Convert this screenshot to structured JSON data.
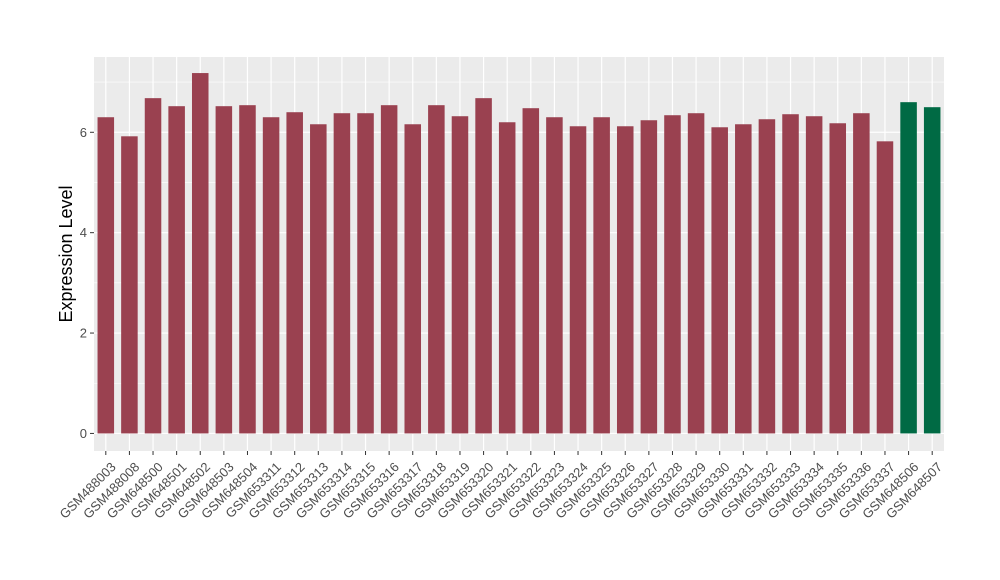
{
  "chart_data": {
    "type": "bar",
    "title": "",
    "xlabel": "",
    "ylabel": "Expression Level",
    "ylim": [
      -0.35,
      7.5
    ],
    "yticks": [
      0,
      2,
      4,
      6
    ],
    "grid": true,
    "legend": "none",
    "categories": [
      "GSM488003",
      "GSM488008",
      "GSM648500",
      "GSM648501",
      "GSM648502",
      "GSM648503",
      "GSM648504",
      "GSM653311",
      "GSM653312",
      "GSM653313",
      "GSM653314",
      "GSM653315",
      "GSM653316",
      "GSM653317",
      "GSM653318",
      "GSM653319",
      "GSM653320",
      "GSM653321",
      "GSM653322",
      "GSM653323",
      "GSM653324",
      "GSM653325",
      "GSM653326",
      "GSM653327",
      "GSM653328",
      "GSM653329",
      "GSM653330",
      "GSM653331",
      "GSM653332",
      "GSM653333",
      "GSM653334",
      "GSM653335",
      "GSM653336",
      "GSM653337",
      "GSM648506",
      "GSM648507"
    ],
    "values": [
      6.3,
      5.92,
      6.68,
      6.52,
      7.18,
      6.52,
      6.54,
      6.3,
      6.4,
      6.16,
      6.38,
      6.38,
      6.54,
      6.16,
      6.54,
      6.32,
      6.68,
      6.2,
      6.48,
      6.3,
      6.12,
      6.3,
      6.12,
      6.24,
      6.34,
      6.38,
      6.1,
      6.16,
      6.26,
      6.36,
      6.32,
      6.18,
      6.38,
      5.82,
      6.6,
      6.5
    ],
    "bar_colors": [
      "#9a4150",
      "#9a4150",
      "#9a4150",
      "#9a4150",
      "#9a4150",
      "#9a4150",
      "#9a4150",
      "#9a4150",
      "#9a4150",
      "#9a4150",
      "#9a4150",
      "#9a4150",
      "#9a4150",
      "#9a4150",
      "#9a4150",
      "#9a4150",
      "#9a4150",
      "#9a4150",
      "#9a4150",
      "#9a4150",
      "#9a4150",
      "#9a4150",
      "#9a4150",
      "#9a4150",
      "#9a4150",
      "#9a4150",
      "#9a4150",
      "#9a4150",
      "#9a4150",
      "#9a4150",
      "#9a4150",
      "#9a4150",
      "#9a4150",
      "#9a4150",
      "#006a44",
      "#006a44"
    ],
    "panel_background": "#ebebeb",
    "gridline_color": "#ffffff"
  }
}
